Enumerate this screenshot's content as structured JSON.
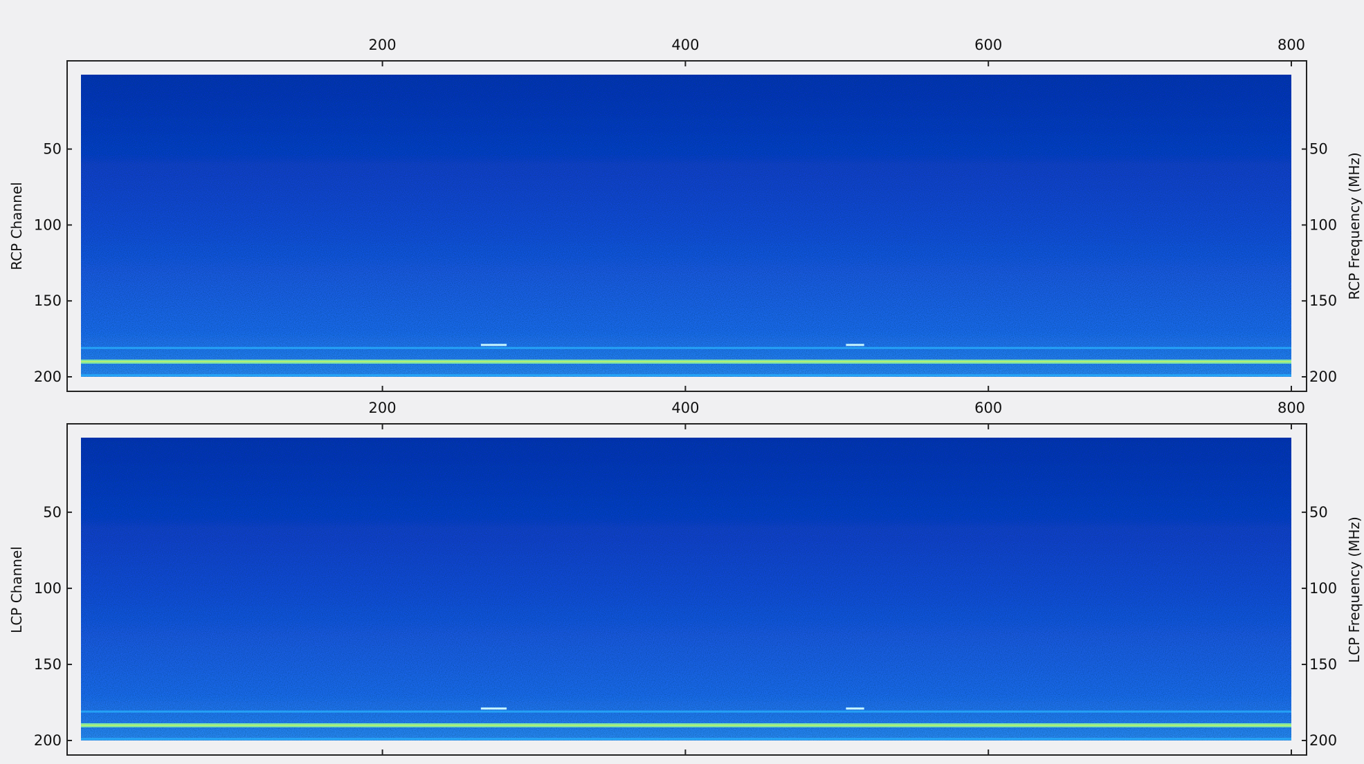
{
  "chart_data": [
    {
      "type": "heatmap",
      "title": "",
      "xlabel": "",
      "ylabel": "RCP  Channel",
      "ylabel_right": "RCP  Frequency (MHz)",
      "xlim": [
        1,
        800
      ],
      "ylim": [
        200,
        1
      ],
      "x_ticks": [
        200,
        400,
        600,
        800
      ],
      "y_ticks": [
        50,
        100,
        150,
        200
      ],
      "y_ticks_right": [
        50,
        100,
        150,
        200
      ],
      "colormap": [
        "#000020",
        "#0a2fb8",
        "#1e6cf0",
        "#29b6ff",
        "#8cf5a0",
        "#e8ff40"
      ],
      "features": [
        {
          "kind": "horizontal-band",
          "channel": 190,
          "intensity": "high"
        },
        {
          "kind": "horizontal-band",
          "channel": 181,
          "intensity": "medium"
        },
        {
          "kind": "horizontal-band",
          "channel": 199,
          "intensity": "medium"
        },
        {
          "kind": "short-segment",
          "channel": 179,
          "x_start": 265,
          "x_end": 282
        },
        {
          "kind": "short-segment",
          "channel": 179,
          "x_start": 506,
          "x_end": 518
        }
      ]
    },
    {
      "type": "heatmap",
      "title": "",
      "xlabel": "",
      "ylabel": "LCP  Channel",
      "ylabel_right": "LCP  Frequency (MHz)",
      "xlim": [
        1,
        800
      ],
      "ylim": [
        200,
        1
      ],
      "x_ticks": [
        200,
        400,
        600,
        800
      ],
      "y_ticks": [
        50,
        100,
        150,
        200
      ],
      "y_ticks_right": [
        50,
        100,
        150,
        200
      ],
      "colormap": [
        "#000020",
        "#0a2fb8",
        "#1e6cf0",
        "#29b6ff",
        "#8cf5a0",
        "#e8ff40"
      ],
      "features": [
        {
          "kind": "horizontal-band",
          "channel": 190,
          "intensity": "high"
        },
        {
          "kind": "horizontal-band",
          "channel": 181,
          "intensity": "medium"
        },
        {
          "kind": "horizontal-band",
          "channel": 199,
          "intensity": "medium"
        },
        {
          "kind": "short-segment",
          "channel": 179,
          "x_start": 265,
          "x_end": 282
        },
        {
          "kind": "short-segment",
          "channel": 179,
          "x_start": 506,
          "x_end": 518
        }
      ]
    }
  ]
}
